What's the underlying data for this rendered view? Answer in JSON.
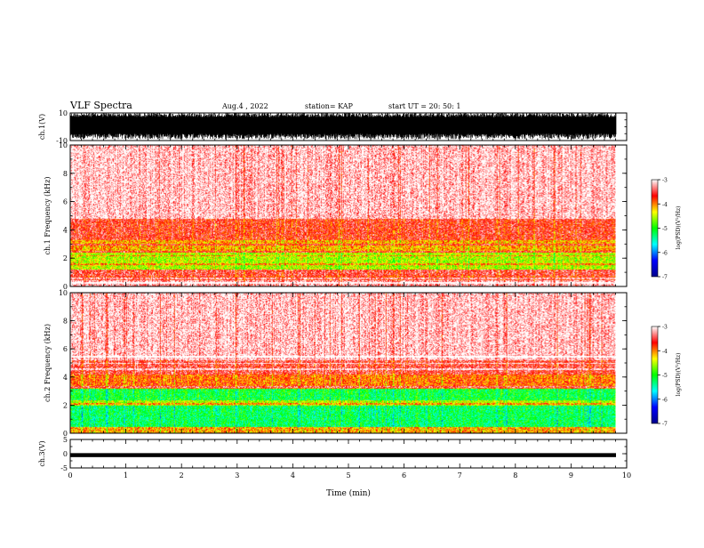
{
  "header": {
    "title": "VLF Spectra",
    "date": "Aug.4 , 2022",
    "station": "station= KAP",
    "start_ut": "start UT = 20: 50: 1"
  },
  "colors": {
    "background": "#ffffff",
    "waveform": "#000000",
    "colorbar_stops": [
      "#00008b",
      "#0000ff",
      "#00ffff",
      "#00ff00",
      "#ffff00",
      "#ff0000",
      "#ffffff"
    ]
  },
  "chart_data": [
    {
      "type": "line",
      "panel": "ch1-waveform",
      "ylabel": "ch.1(V)",
      "ylim": [
        -10,
        10
      ],
      "yticks": [
        "10",
        "-10"
      ],
      "xlim": [
        0,
        10
      ],
      "trace": {
        "min": -10,
        "max": 10,
        "typical_min": -7,
        "typical_max": 10
      }
    },
    {
      "type": "heatmap",
      "panel": "ch1-spectrogram",
      "ylabel": "ch.1 Frequency (kHz)",
      "ylim": [
        0,
        10
      ],
      "yticks": [
        "0",
        "2",
        "4",
        "6",
        "8",
        "10"
      ],
      "xlim": [
        0,
        10
      ],
      "data_end_min": 9.8,
      "colorbar": {
        "label": "log(PSD)(V²/Hz)",
        "range": [
          -7,
          -3
        ],
        "ticks": [
          "-3",
          "-4",
          "-5",
          "-6",
          "-7"
        ]
      },
      "bands": [
        {
          "from": 0,
          "to": 0.5,
          "level": -3.2
        },
        {
          "from": 0.5,
          "to": 0.8,
          "level": -3.7
        },
        {
          "from": 0.8,
          "to": 1.2,
          "level": -3.5
        },
        {
          "from": 1.2,
          "to": 2.4,
          "level": -4.5
        },
        {
          "from": 2.4,
          "to": 3.3,
          "level": -4.1
        },
        {
          "from": 3.3,
          "to": 4.8,
          "level": -3.6
        },
        {
          "from": 4.8,
          "to": 10,
          "level": -3.1
        }
      ],
      "lines_khz": [
        0.3,
        0.6,
        1.6,
        2.2,
        2.5,
        3.0
      ]
    },
    {
      "type": "heatmap",
      "panel": "ch2-spectrogram",
      "ylabel": "ch.2 Frequency (kHz)",
      "ylim": [
        0,
        10
      ],
      "yticks": [
        "0",
        "2",
        "4",
        "6",
        "8",
        "10"
      ],
      "xlim": [
        0,
        10
      ],
      "data_end_min": 9.8,
      "colorbar": {
        "label": "log(PSD)(V²/Hz)",
        "range": [
          -7,
          -3
        ],
        "ticks": [
          "-3",
          "-4",
          "-5",
          "-6",
          "-7"
        ]
      },
      "bands": [
        {
          "from": 0,
          "to": 0.5,
          "level": -4.1
        },
        {
          "from": 0.5,
          "to": 2.0,
          "level": -5.2
        },
        {
          "from": 2.0,
          "to": 2.4,
          "level": -4.5
        },
        {
          "from": 2.4,
          "to": 3.2,
          "level": -5.1
        },
        {
          "from": 3.2,
          "to": 4.2,
          "level": -3.9
        },
        {
          "from": 4.2,
          "to": 5.2,
          "level": -3.5
        },
        {
          "from": 5.2,
          "to": 10,
          "level": -3.1
        }
      ],
      "lines_khz": [
        2.1,
        3.3,
        4.6,
        5.0,
        5.5
      ]
    },
    {
      "type": "line",
      "panel": "ch3-waveform",
      "ylabel": "ch.3(V)",
      "ylim": [
        -5,
        5
      ],
      "yticks": [
        "5",
        "0",
        "-5"
      ],
      "xlim": [
        0,
        10
      ],
      "xlabel": "Time (min)",
      "xticks": [
        "0",
        "1",
        "2",
        "3",
        "4",
        "5",
        "6",
        "7",
        "8",
        "9",
        "10"
      ],
      "trace": {
        "min": -1.2,
        "max": 0.2
      }
    }
  ]
}
